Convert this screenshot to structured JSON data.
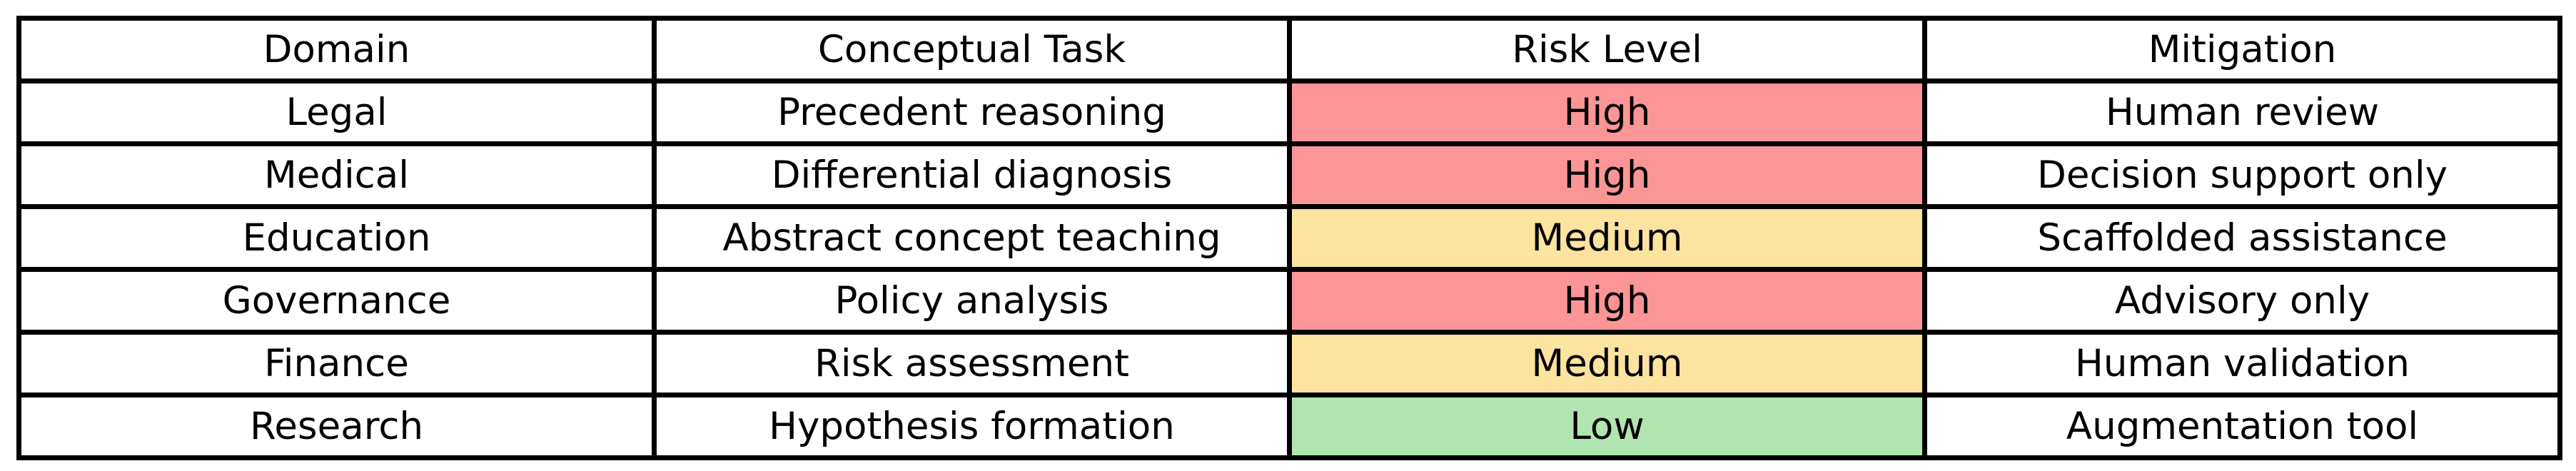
{
  "table": {
    "columns": [
      "Domain",
      "Conceptual Task",
      "Risk Level",
      "Mitigation"
    ],
    "rows": [
      {
        "domain": "Legal",
        "task": "Precedent reasoning",
        "risk": "High",
        "mitigation": "Human review"
      },
      {
        "domain": "Medical",
        "task": "Differential diagnosis",
        "risk": "High",
        "mitigation": "Decision support only"
      },
      {
        "domain": "Education",
        "task": "Abstract concept teaching",
        "risk": "Medium",
        "mitigation": "Scaffolded assistance"
      },
      {
        "domain": "Governance",
        "task": "Policy analysis",
        "risk": "High",
        "mitigation": "Advisory only"
      },
      {
        "domain": "Finance",
        "task": "Risk assessment",
        "risk": "Medium",
        "mitigation": "Human validation"
      },
      {
        "domain": "Research",
        "task": "Hypothesis formation",
        "risk": "Low",
        "mitigation": "Augmentation tool"
      }
    ],
    "risk_colors": {
      "High": "#fc9595",
      "Medium": "#fce3a0",
      "Low": "#b1e5b0"
    },
    "border_color": "#000000",
    "text_color": "#000000",
    "cell_background": "#ffffff"
  },
  "chart_data": {
    "type": "table",
    "title": "",
    "columns": [
      "Domain",
      "Conceptual Task",
      "Risk Level",
      "Mitigation"
    ],
    "rows": [
      [
        "Legal",
        "Precedent reasoning",
        "High",
        "Human review"
      ],
      [
        "Medical",
        "Differential diagnosis",
        "High",
        "Decision support only"
      ],
      [
        "Education",
        "Abstract concept teaching",
        "Medium",
        "Scaffolded assistance"
      ],
      [
        "Governance",
        "Policy analysis",
        "High",
        "Advisory only"
      ],
      [
        "Finance",
        "Risk assessment",
        "Medium",
        "Human validation"
      ],
      [
        "Research",
        "Hypothesis formation",
        "Low",
        "Augmentation tool"
      ]
    ],
    "cell_fill_rules": {
      "High": "#fc9595",
      "Medium": "#fce3a0",
      "Low": "#b1e5b0",
      "default": "#ffffff"
    },
    "layout_hints": {
      "grid": true,
      "columns_equal_width": true,
      "text_align": "center"
    }
  }
}
